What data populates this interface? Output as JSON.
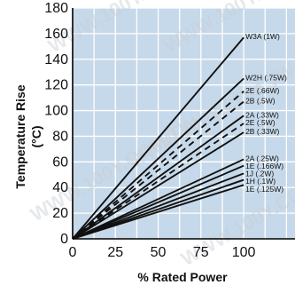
{
  "chart_data": {
    "type": "line",
    "title": "",
    "xlabel": "% Rated Power",
    "ylabel": "Temperature Rise (°C)",
    "ylabel_lines": [
      "Temperature Rise",
      "(°C)"
    ],
    "xlim": [
      0,
      130
    ],
    "ylim": [
      0,
      180
    ],
    "xticks": [
      0,
      25,
      50,
      75,
      100
    ],
    "yticks": [
      0,
      20,
      40,
      60,
      80,
      100,
      120,
      140,
      160,
      180
    ],
    "grid": true,
    "background": "#c6d9ea",
    "grid_color": "#ffffff",
    "series": [
      {
        "name": "W3A (1W)",
        "x": [
          0,
          100
        ],
        "y": [
          0,
          157
        ],
        "style": "solid"
      },
      {
        "name": "W2H (.75W)",
        "x": [
          0,
          100
        ],
        "y": [
          0,
          125
        ],
        "style": "solid"
      },
      {
        "name": "2E (.66W)",
        "x": [
          0,
          100
        ],
        "y": [
          0,
          115
        ],
        "style": "dashed"
      },
      {
        "name": "2B (.5W)",
        "x": [
          0,
          100
        ],
        "y": [
          0,
          107
        ],
        "style": "dashed"
      },
      {
        "name": "2A (.33W)",
        "x": [
          0,
          100
        ],
        "y": [
          0,
          96
        ],
        "style": "solid"
      },
      {
        "name": "2E (.5W)",
        "x": [
          0,
          100
        ],
        "y": [
          0,
          90
        ],
        "style": "dashed"
      },
      {
        "name": "2B (.33W)",
        "x": [
          0,
          100
        ],
        "y": [
          0,
          83
        ],
        "style": "solid"
      },
      {
        "name": "2A (.25W)",
        "x": [
          0,
          100
        ],
        "y": [
          0,
          62
        ],
        "style": "solid"
      },
      {
        "name": "1E (.166W)",
        "x": [
          0,
          100
        ],
        "y": [
          0,
          57
        ],
        "style": "solid"
      },
      {
        "name": "1J (.2W)",
        "x": [
          0,
          100
        ],
        "y": [
          0,
          51
        ],
        "style": "solid"
      },
      {
        "name": "1H (.1W)",
        "x": [
          0,
          100
        ],
        "y": [
          0,
          46
        ],
        "style": "solid"
      },
      {
        "name": "1E (.125W)",
        "x": [
          0,
          100
        ],
        "y": [
          0,
          42
        ],
        "style": "solid"
      }
    ]
  },
  "watermark": "WWW.100Y.COM.TW"
}
